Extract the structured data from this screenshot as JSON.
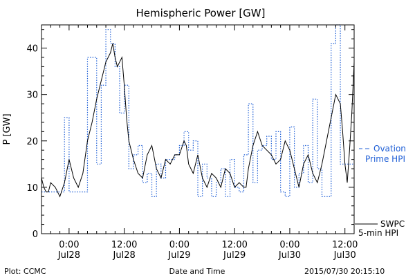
{
  "chart_data": {
    "type": "line",
    "title": "Hemispheric Power [GW]",
    "xlabel": "Date and Time",
    "ylabel": "P [GW]",
    "xlim_hours": [
      -6,
      62
    ],
    "ylim": [
      0,
      45
    ],
    "yticks": [
      0,
      10,
      20,
      30,
      40
    ],
    "xticks": [
      {
        "hour": 0,
        "time": "0:00",
        "date": "Jul28"
      },
      {
        "hour": 12,
        "time": "12:00",
        "date": "Jul28"
      },
      {
        "hour": 24,
        "time": "0:00",
        "date": "Jul29"
      },
      {
        "hour": 36,
        "time": "12:00",
        "date": "Jul29"
      },
      {
        "hour": 48,
        "time": "0:00",
        "date": "Jul30"
      },
      {
        "hour": 60,
        "time": "12:00",
        "date": "Jul30"
      }
    ],
    "legend": [
      {
        "label_lines": [
          "Ovation",
          "Prime HPI"
        ],
        "style": "dotted-step",
        "color": "#1f5fd6"
      },
      {
        "label_lines": [
          "SWPC",
          "5-min HPI"
        ],
        "style": "solid",
        "color": "#000000"
      }
    ],
    "series": [
      {
        "name": "Ovation Prime HPI",
        "style": "dotted-step",
        "color": "#1f5fd6",
        "x": [
          -6,
          -1,
          0,
          2,
          4,
          6,
          7,
          8,
          9,
          10,
          11,
          12,
          13,
          14,
          15,
          16,
          17,
          18,
          19,
          20,
          21,
          22,
          23,
          24,
          25,
          26,
          27,
          28,
          29,
          30,
          31,
          32,
          33,
          34,
          35,
          36,
          37,
          38,
          39,
          40,
          41,
          42,
          43,
          44,
          45,
          46,
          47,
          48,
          49,
          50,
          51,
          52,
          53,
          54,
          55,
          56,
          57,
          58,
          59,
          60,
          61,
          62
        ],
        "y": [
          9,
          25,
          9,
          9,
          38,
          15,
          32,
          44,
          41,
          36,
          26,
          32,
          14,
          17,
          19,
          11,
          13,
          8,
          15,
          12,
          16,
          16,
          17,
          19,
          22,
          18,
          20,
          8,
          15,
          12,
          8,
          11,
          14,
          8,
          16,
          10,
          9,
          17,
          28,
          11,
          18,
          19,
          21,
          16,
          22,
          9,
          8,
          23,
          10,
          13,
          19,
          11,
          29,
          14,
          8,
          8,
          41,
          45,
          15,
          15,
          15,
          15
        ]
      },
      {
        "name": "SWPC 5-min HPI",
        "style": "solid",
        "color": "#000000",
        "x": [
          -6,
          -5.5,
          -5,
          -4.5,
          -4,
          -3,
          -2,
          -1,
          0,
          1,
          2,
          3,
          4,
          5,
          6,
          7,
          8,
          9,
          9.5,
          10,
          10.5,
          11,
          11.5,
          12,
          12.5,
          13,
          14,
          15,
          16,
          17,
          18,
          19,
          20,
          21,
          22,
          23,
          24,
          25,
          25.5,
          26,
          27,
          28,
          29,
          30,
          31,
          32,
          33,
          34,
          35,
          36,
          37,
          38,
          38.5,
          39,
          40,
          41,
          42,
          43,
          44,
          45,
          46,
          47,
          48,
          49,
          50,
          51,
          52,
          53,
          54,
          55,
          56,
          57,
          58,
          59,
          59.5,
          60,
          60.5,
          61,
          61.5,
          62
        ],
        "y": [
          12,
          10,
          9,
          9,
          11,
          10,
          8,
          11,
          16,
          12,
          10,
          13,
          20,
          24,
          29,
          33,
          37,
          39,
          41,
          38,
          36,
          37,
          38,
          32,
          25,
          20,
          16,
          13,
          12,
          17,
          19,
          14,
          12,
          16,
          15,
          17,
          17,
          20,
          19,
          15,
          13,
          17,
          12,
          10,
          13,
          12,
          10,
          14,
          13,
          10,
          11,
          10,
          10,
          14,
          19,
          22,
          19,
          18,
          17,
          15,
          16,
          20,
          18,
          14,
          10,
          15,
          17,
          13,
          11,
          15,
          20,
          25,
          30,
          28,
          22,
          15,
          11,
          18,
          26,
          37
        ]
      }
    ]
  },
  "footer": {
    "plot_credit": "Plot: CCMC",
    "timestamp": "2015/07/30 20:15:10"
  }
}
